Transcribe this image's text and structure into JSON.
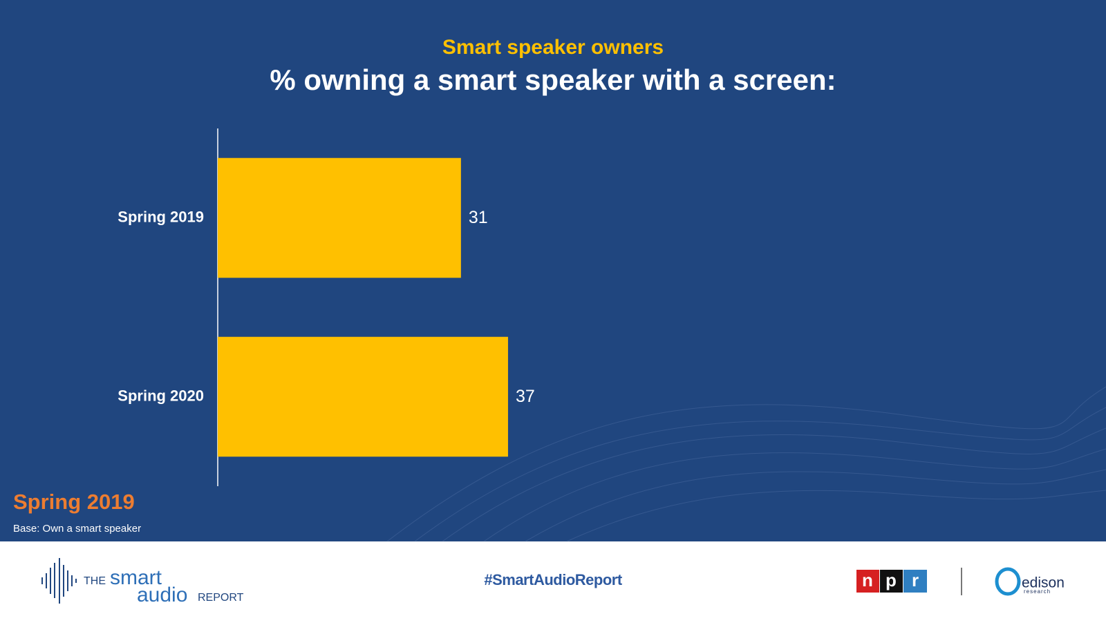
{
  "chart_data": {
    "type": "barh",
    "subtitle": "Smart speaker owners",
    "title": "% owning a smart speaker with a screen:",
    "categories": [
      "Spring 2019",
      "Spring 2020"
    ],
    "values": [
      31,
      37
    ],
    "color": "#ffc000",
    "note_title": "Spring 2019",
    "note": "Base: Own a smart speaker"
  },
  "footer": {
    "logo_the": "THE",
    "logo_smart": "smart",
    "logo_audio": "audio",
    "logo_report": "REPORT",
    "hashtag": "#SmartAudioReport",
    "npr": [
      "n",
      "p",
      "r"
    ],
    "edison": "edison",
    "edison_sub": "research"
  }
}
